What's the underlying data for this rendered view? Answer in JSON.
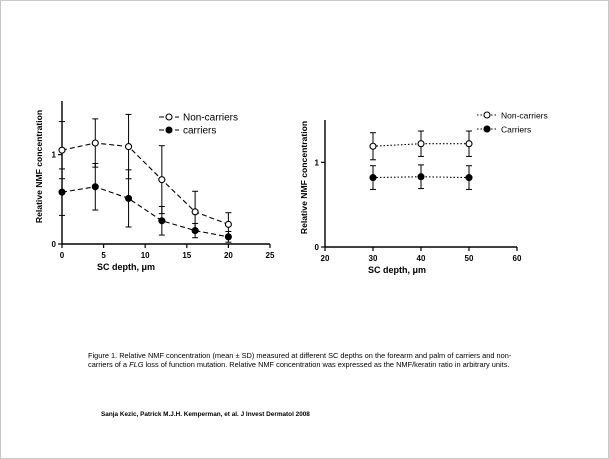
{
  "chart_data": [
    {
      "type": "line",
      "ylabel": "Relative NMF concentration",
      "xlabel": "SC depth, μm",
      "xlim": [
        0,
        25
      ],
      "xticks": [
        0,
        5,
        10,
        15,
        20,
        25
      ],
      "ylim": [
        0,
        1.6
      ],
      "yticks": [
        0,
        1
      ],
      "legend_position": "top-right",
      "error_bars": "mean ± SD",
      "x": [
        0,
        4,
        8,
        12,
        16,
        20
      ],
      "series": [
        {
          "name": "Non-carriers",
          "marker": "open-circle",
          "line": "dashed",
          "values": [
            1.05,
            1.13,
            1.09,
            0.72,
            0.36,
            0.22
          ],
          "error": [
            0.32,
            0.27,
            0.36,
            0.38,
            0.23,
            0.13
          ]
        },
        {
          "name": "carriers",
          "marker": "filled-circle",
          "line": "dashed",
          "values": [
            0.58,
            0.64,
            0.51,
            0.26,
            0.15,
            0.08
          ],
          "error": [
            0.26,
            0.26,
            0.32,
            0.16,
            0.08,
            0.06
          ]
        }
      ]
    },
    {
      "type": "line",
      "ylabel": "Relative NMF concentration",
      "xlabel": "SC depth, μm",
      "xlim": [
        20,
        60
      ],
      "xticks": [
        20,
        30,
        40,
        50,
        60
      ],
      "ylim": [
        0,
        1.5
      ],
      "yticks": [
        0,
        1
      ],
      "legend_position": "top-right",
      "error_bars": "mean ± SD",
      "x": [
        30,
        40,
        50
      ],
      "series": [
        {
          "name": "Non-carriers",
          "marker": "open-circle",
          "line": "dotted",
          "values": [
            1.19,
            1.22,
            1.22
          ],
          "error": [
            0.16,
            0.15,
            0.15
          ]
        },
        {
          "name": "Carriers",
          "marker": "filled-circle",
          "line": "dotted",
          "values": [
            0.82,
            0.83,
            0.82
          ],
          "error": [
            0.14,
            0.14,
            0.14
          ]
        }
      ]
    }
  ],
  "caption": {
    "part1": "Figure 1. Relative NMF concentration (mean ± SD) measured at different SC depths on the forearm and palm of carriers and non-carriers of a ",
    "italic": "FLG",
    "part2": " loss of function mutation. Relative NMF concentration was expressed as the NMF/keratin ratio in arbitrary units."
  },
  "citation": "Sanja Kezic, Patrick M.J.H. Kemperman, et al. J Invest Dermatol 2008"
}
